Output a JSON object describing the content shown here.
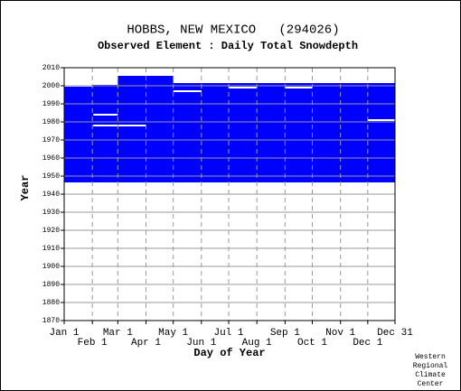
{
  "chart_data": {
    "type": "availability",
    "title": "HOBBS, NEW MEXICO   (294026)",
    "subtitle": "Observed Element : Daily Total Snowdepth",
    "xlabel": "Day of Year",
    "ylabel": "Year",
    "xlim": [
      1,
      365
    ],
    "ylim": [
      1870,
      2010
    ],
    "xticks": [
      {
        "value": 1,
        "label": "Jan 1"
      },
      {
        "value": 32,
        "label": "Feb 1"
      },
      {
        "value": 60,
        "label": "Mar 1"
      },
      {
        "value": 91,
        "label": "Apr 1"
      },
      {
        "value": 121,
        "label": "May 1"
      },
      {
        "value": 152,
        "label": "Jun 1"
      },
      {
        "value": 182,
        "label": "Jul 1"
      },
      {
        "value": 213,
        "label": "Aug 1"
      },
      {
        "value": 244,
        "label": "Sep 1"
      },
      {
        "value": 274,
        "label": "Oct 1"
      },
      {
        "value": 305,
        "label": "Nov 1"
      },
      {
        "value": 335,
        "label": "Dec 1"
      },
      {
        "value": 365,
        "label": "Dec 31"
      }
    ],
    "yticks": [
      1870,
      1880,
      1890,
      1900,
      1910,
      1920,
      1930,
      1940,
      1950,
      1960,
      1970,
      1980,
      1990,
      2000,
      2010
    ],
    "grid": true,
    "color": "#0000ff",
    "data_blocks": [
      {
        "start_day": 1,
        "end_day": 365,
        "start_year": 1947,
        "end_year": 2005
      }
    ],
    "gaps": [
      {
        "start_day": 1,
        "end_day": 59,
        "start_year": 2001,
        "end_year": 2005
      },
      {
        "start_day": 121,
        "end_day": 365,
        "start_year": 2002,
        "end_year": 2005
      },
      {
        "start_day": 1,
        "end_day": 31,
        "start_year": 2000,
        "end_year": 2000
      },
      {
        "start_day": 33,
        "end_day": 59,
        "start_year": 1984,
        "end_year": 1984
      },
      {
        "start_day": 33,
        "end_day": 90,
        "start_year": 1978,
        "end_year": 1978
      },
      {
        "start_day": 121,
        "end_day": 151,
        "start_year": 1997,
        "end_year": 1997
      },
      {
        "start_day": 182,
        "end_day": 212,
        "start_year": 1999,
        "end_year": 1999
      },
      {
        "start_day": 244,
        "end_day": 273,
        "start_year": 1999,
        "end_year": 1999
      },
      {
        "start_day": 335,
        "end_day": 365,
        "start_year": 1981,
        "end_year": 1981
      }
    ],
    "credit": [
      "Western",
      "Regional",
      "Climate",
      "Center"
    ]
  }
}
